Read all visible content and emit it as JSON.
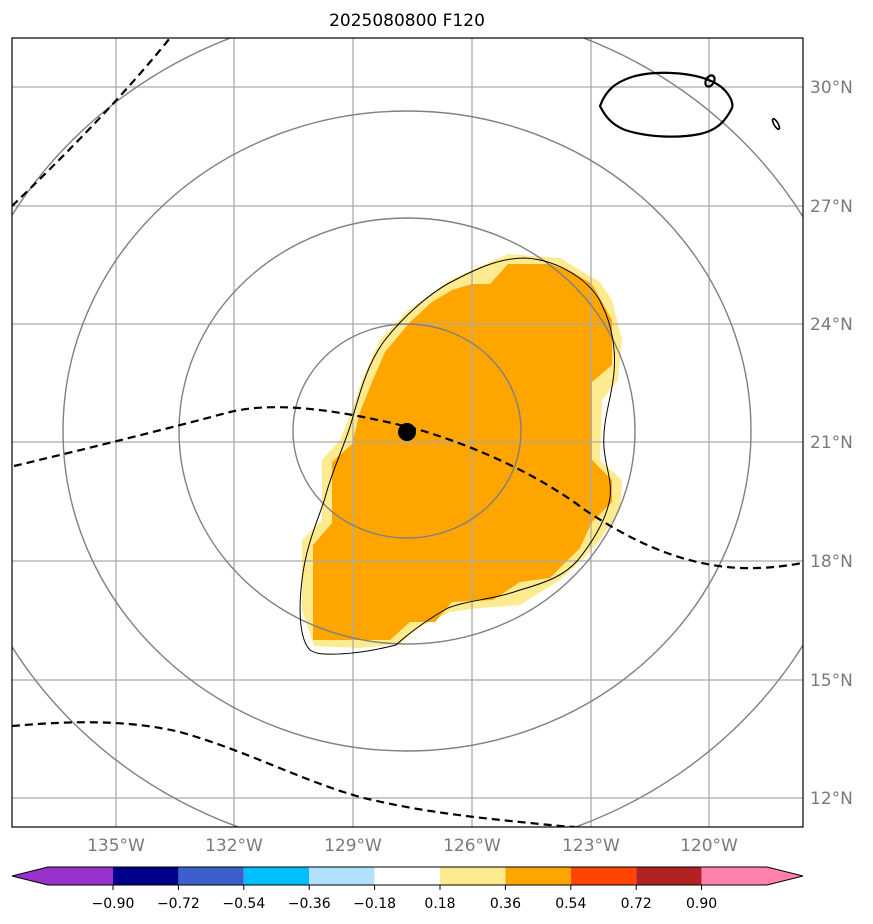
{
  "title": "2025080800 F120",
  "map": {
    "lon_ticks": [
      "135°W",
      "132°W",
      "129°W",
      "126°W",
      "123°W",
      "120°W"
    ],
    "lat_ticks": [
      "30°N",
      "27°N",
      "24°N",
      "21°N",
      "18°N",
      "15°N",
      "12°N"
    ],
    "lon_range": [
      -137.5,
      -117.5
    ],
    "lat_range": [
      11.3,
      31.3
    ],
    "center": {
      "lon": -127.5,
      "lat": 21.2
    },
    "range_rings": "concentric distance circles around storm center",
    "fill_colors": {
      "pale": "#ffeb8f",
      "orange": "#ffa500"
    },
    "contour_dashed": "#000000",
    "contour_solid": "#000000"
  },
  "colorbar": {
    "tick_labels": [
      "−0.90",
      "−0.72",
      "−0.54",
      "−0.36",
      "−0.18",
      "0.18",
      "0.36",
      "0.54",
      "0.72",
      "0.90"
    ],
    "colors": [
      "#9932cc",
      "#00008b",
      "#3c5fcd",
      "#00bfff",
      "#b0e2ff",
      "#ffffff",
      "#ffeb8f",
      "#ffa500",
      "#ff4500",
      "#b22222",
      "#ff82ab"
    ]
  }
}
